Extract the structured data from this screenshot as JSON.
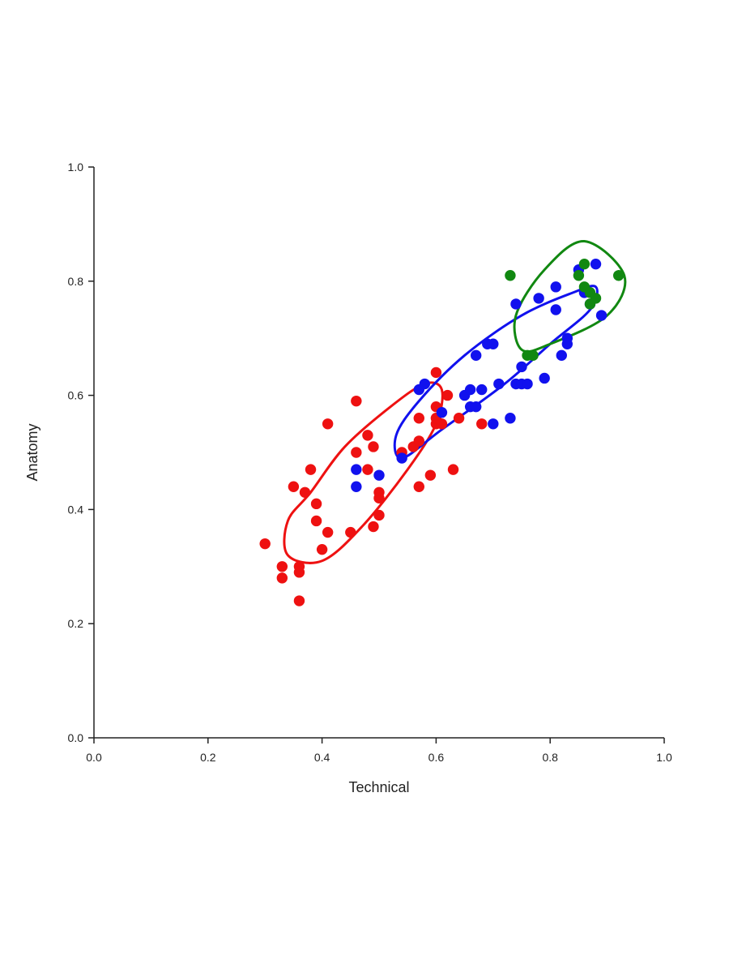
{
  "chart_data": {
    "type": "scatter",
    "title": "",
    "xlabel": "Technical",
    "ylabel": "Anatomy",
    "xlim": [
      0.0,
      1.0
    ],
    "ylim": [
      0.0,
      1.0
    ],
    "x_ticks": [
      "0.0",
      "0.2",
      "0.4",
      "0.6",
      "0.8",
      "1.0"
    ],
    "y_ticks": [
      "0.0",
      "0.2",
      "0.4",
      "0.6",
      "0.8",
      "1.0"
    ],
    "grid": false,
    "legend": "none",
    "series": [
      {
        "color": "#ee1111",
        "points": [
          [
            0.3,
            0.34
          ],
          [
            0.33,
            0.28
          ],
          [
            0.33,
            0.3
          ],
          [
            0.35,
            0.44
          ],
          [
            0.36,
            0.29
          ],
          [
            0.36,
            0.24
          ],
          [
            0.36,
            0.3
          ],
          [
            0.37,
            0.43
          ],
          [
            0.38,
            0.47
          ],
          [
            0.39,
            0.41
          ],
          [
            0.39,
            0.38
          ],
          [
            0.4,
            0.33
          ],
          [
            0.41,
            0.36
          ],
          [
            0.41,
            0.55
          ],
          [
            0.45,
            0.36
          ],
          [
            0.46,
            0.59
          ],
          [
            0.46,
            0.5
          ],
          [
            0.48,
            0.53
          ],
          [
            0.48,
            0.47
          ],
          [
            0.49,
            0.51
          ],
          [
            0.49,
            0.37
          ],
          [
            0.5,
            0.39
          ],
          [
            0.5,
            0.43
          ],
          [
            0.5,
            0.42
          ],
          [
            0.54,
            0.5
          ],
          [
            0.56,
            0.51
          ],
          [
            0.57,
            0.52
          ],
          [
            0.57,
            0.44
          ],
          [
            0.57,
            0.56
          ],
          [
            0.59,
            0.46
          ],
          [
            0.6,
            0.64
          ],
          [
            0.6,
            0.55
          ],
          [
            0.6,
            0.58
          ],
          [
            0.6,
            0.56
          ],
          [
            0.61,
            0.55
          ],
          [
            0.62,
            0.6
          ],
          [
            0.63,
            0.47
          ],
          [
            0.64,
            0.56
          ],
          [
            0.68,
            0.55
          ]
        ],
        "ellipse": {
          "points": [
            [
              0.58,
              0.62
            ],
            [
              0.61,
              0.61
            ],
            [
              0.6,
              0.55
            ],
            [
              0.55,
              0.47
            ],
            [
              0.47,
              0.37
            ],
            [
              0.4,
              0.31
            ],
            [
              0.34,
              0.32
            ],
            [
              0.34,
              0.38
            ],
            [
              0.38,
              0.43
            ],
            [
              0.44,
              0.51
            ],
            [
              0.52,
              0.58
            ],
            [
              0.58,
              0.62
            ]
          ]
        }
      },
      {
        "color": "#1111ee",
        "points": [
          [
            0.46,
            0.47
          ],
          [
            0.46,
            0.44
          ],
          [
            0.5,
            0.46
          ],
          [
            0.54,
            0.49
          ],
          [
            0.57,
            0.61
          ],
          [
            0.58,
            0.62
          ],
          [
            0.61,
            0.57
          ],
          [
            0.65,
            0.6
          ],
          [
            0.66,
            0.61
          ],
          [
            0.66,
            0.58
          ],
          [
            0.67,
            0.67
          ],
          [
            0.67,
            0.58
          ],
          [
            0.68,
            0.61
          ],
          [
            0.69,
            0.69
          ],
          [
            0.7,
            0.69
          ],
          [
            0.7,
            0.55
          ],
          [
            0.71,
            0.62
          ],
          [
            0.73,
            0.56
          ],
          [
            0.74,
            0.76
          ],
          [
            0.74,
            0.62
          ],
          [
            0.75,
            0.65
          ],
          [
            0.75,
            0.62
          ],
          [
            0.76,
            0.62
          ],
          [
            0.78,
            0.77
          ],
          [
            0.79,
            0.63
          ],
          [
            0.81,
            0.79
          ],
          [
            0.81,
            0.75
          ],
          [
            0.82,
            0.67
          ],
          [
            0.83,
            0.7
          ],
          [
            0.83,
            0.69
          ],
          [
            0.85,
            0.82
          ],
          [
            0.86,
            0.78
          ],
          [
            0.87,
            0.76
          ],
          [
            0.88,
            0.83
          ],
          [
            0.89,
            0.74
          ]
        ],
        "ellipse": {
          "points": [
            [
              0.84,
              0.78
            ],
            [
              0.88,
              0.79
            ],
            [
              0.87,
              0.75
            ],
            [
              0.8,
              0.69
            ],
            [
              0.72,
              0.62
            ],
            [
              0.61,
              0.54
            ],
            [
              0.54,
              0.49
            ],
            [
              0.53,
              0.53
            ],
            [
              0.57,
              0.59
            ],
            [
              0.65,
              0.67
            ],
            [
              0.75,
              0.74
            ],
            [
              0.84,
              0.78
            ]
          ]
        }
      },
      {
        "color": "#118811",
        "points": [
          [
            0.73,
            0.81
          ],
          [
            0.76,
            0.67
          ],
          [
            0.77,
            0.67
          ],
          [
            0.85,
            0.81
          ],
          [
            0.86,
            0.83
          ],
          [
            0.86,
            0.79
          ],
          [
            0.87,
            0.78
          ],
          [
            0.87,
            0.76
          ],
          [
            0.88,
            0.77
          ],
          [
            0.92,
            0.81
          ]
        ],
        "ellipse": {
          "points": [
            [
              0.86,
              0.87
            ],
            [
              0.93,
              0.81
            ],
            [
              0.9,
              0.74
            ],
            [
              0.8,
              0.69
            ],
            [
              0.75,
              0.68
            ],
            [
              0.74,
              0.74
            ],
            [
              0.79,
              0.82
            ],
            [
              0.86,
              0.87
            ]
          ]
        }
      }
    ]
  }
}
